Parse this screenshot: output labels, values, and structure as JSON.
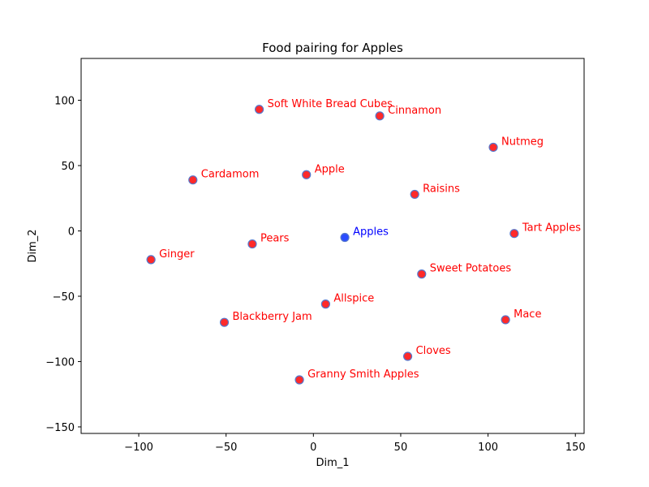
{
  "chart_data": {
    "type": "scatter",
    "title": "Food pairing for Apples",
    "xlabel": "Dim_1",
    "ylabel": "Dim_2",
    "xlim": [
      -133,
      155
    ],
    "ylim": [
      -155,
      132
    ],
    "xticks": [
      -100,
      -50,
      0,
      50,
      100,
      150
    ],
    "yticks": [
      -150,
      -100,
      -50,
      0,
      50,
      100
    ],
    "grid": false,
    "legend": "none",
    "colors": {
      "target_fill": "#2b4cff",
      "target_label": "#0000ff",
      "pairing_fill": "#ff2a2a",
      "pairing_label": "#ff0000",
      "marker_edge": "#5577cc"
    },
    "points": [
      {
        "label": "Apples",
        "x": 18,
        "y": -5,
        "role": "target"
      },
      {
        "label": "Soft White Bread Cubes",
        "x": -31,
        "y": 93,
        "role": "pairing"
      },
      {
        "label": "Cinnamon",
        "x": 38,
        "y": 88,
        "role": "pairing"
      },
      {
        "label": "Nutmeg",
        "x": 103,
        "y": 64,
        "role": "pairing"
      },
      {
        "label": "Cardamom",
        "x": -69,
        "y": 39,
        "role": "pairing"
      },
      {
        "label": "Apple",
        "x": -4,
        "y": 43,
        "role": "pairing"
      },
      {
        "label": "Raisins",
        "x": 58,
        "y": 28,
        "role": "pairing"
      },
      {
        "label": "Tart Apples",
        "x": 115,
        "y": -2,
        "role": "pairing"
      },
      {
        "label": "Pears",
        "x": -35,
        "y": -10,
        "role": "pairing"
      },
      {
        "label": "Ginger",
        "x": -93,
        "y": -22,
        "role": "pairing"
      },
      {
        "label": "Sweet Potatoes",
        "x": 62,
        "y": -33,
        "role": "pairing"
      },
      {
        "label": "Allspice",
        "x": 7,
        "y": -56,
        "role": "pairing"
      },
      {
        "label": "Blackberry Jam",
        "x": -51,
        "y": -70,
        "role": "pairing"
      },
      {
        "label": "Mace",
        "x": 110,
        "y": -68,
        "role": "pairing"
      },
      {
        "label": "Cloves",
        "x": 54,
        "y": -96,
        "role": "pairing"
      },
      {
        "label": "Granny Smith Apples",
        "x": -8,
        "y": -114,
        "role": "pairing"
      }
    ]
  }
}
